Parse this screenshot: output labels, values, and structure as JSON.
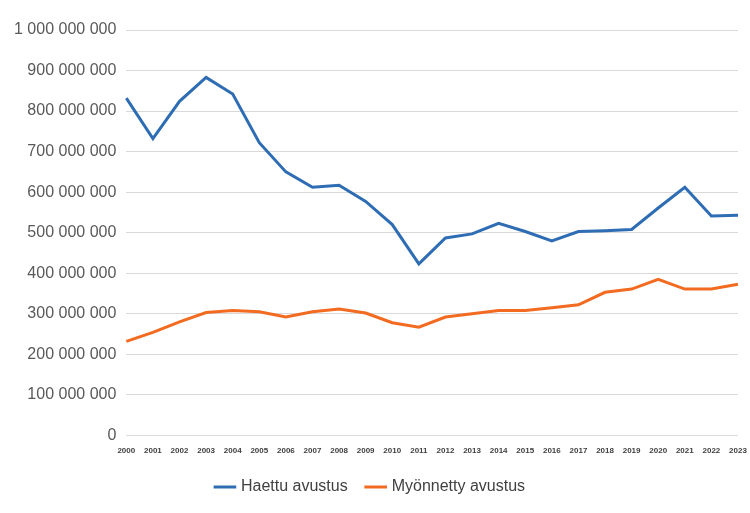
{
  "chart_data": {
    "type": "line",
    "categories": [
      "2000",
      "2001",
      "2002",
      "2003",
      "2004",
      "2005",
      "2006",
      "2007",
      "2008",
      "2009",
      "2010",
      "2011",
      "2012",
      "2013",
      "2014",
      "2015",
      "2016",
      "2017",
      "2018",
      "2019",
      "2020",
      "2021",
      "2022",
      "2023"
    ],
    "series": [
      {
        "name": "Haettu avustus",
        "color": "#2e6db4",
        "values": [
          832000000,
          732000000,
          824000000,
          883000000,
          842000000,
          722000000,
          650000000,
          612000000,
          617000000,
          577000000,
          520000000,
          423000000,
          487000000,
          497000000,
          523000000,
          503000000,
          480000000,
          503000000,
          505000000,
          508000000,
          561000000,
          612000000,
          541000000,
          543000000
        ]
      },
      {
        "name": "Myönnetty avustus",
        "color": "#f26b21",
        "values": [
          232000000,
          254000000,
          280000000,
          303000000,
          308000000,
          305000000,
          292000000,
          305000000,
          312000000,
          302000000,
          278000000,
          267000000,
          292000000,
          300000000,
          308000000,
          308000000,
          315000000,
          322000000,
          353000000,
          361000000,
          385000000,
          361000000,
          361000000,
          373000000
        ]
      }
    ],
    "ylim": [
      0,
      1000000000
    ],
    "yticks": [
      0,
      {
        "value": 100000000,
        "label": "100 000 000"
      },
      {
        "value": 200000000,
        "label": "200 000 000"
      },
      {
        "value": 300000000,
        "label": "300 000 000"
      },
      {
        "value": 400000000,
        "label": "400 000 000"
      },
      {
        "value": 500000000,
        "label": "500 000 000"
      },
      {
        "value": 600000000,
        "label": "600 000 000"
      },
      {
        "value": 700000000,
        "label": "700 000 000"
      },
      {
        "value": 800000000,
        "label": "800 000 000"
      },
      {
        "value": 900000000,
        "label": "900 000 000"
      },
      {
        "value": 1000000000,
        "label": "1 000 000 000"
      }
    ],
    "grid": true,
    "legend": "bottom"
  }
}
